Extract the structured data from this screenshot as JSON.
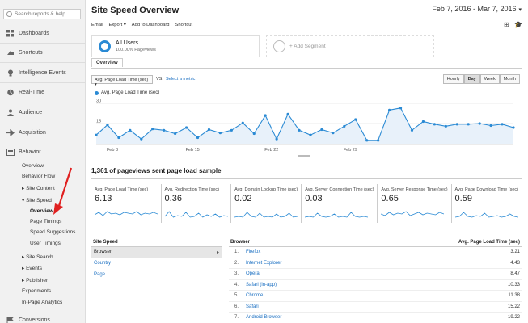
{
  "sidebar": {
    "search_placeholder": "Search reports & help",
    "items": [
      {
        "label": "Dashboards",
        "icon": "grid-icon"
      },
      {
        "label": "Shortcuts",
        "icon": "shortcut-icon"
      },
      {
        "label": "Intelligence Events",
        "icon": "lightbulb-icon"
      },
      {
        "label": "Real-Time",
        "icon": "clock-icon"
      },
      {
        "label": "Audience",
        "icon": "person-icon"
      },
      {
        "label": "Acquisition",
        "icon": "acquisition-icon"
      },
      {
        "label": "Behavior",
        "icon": "behavior-icon"
      },
      {
        "label": "Conversions",
        "icon": "flag-icon"
      }
    ],
    "behavior_sub": {
      "overview": "Overview",
      "behavior_flow": "Behavior Flow",
      "site_content": "▸ Site Content",
      "site_speed": "▾ Site Speed",
      "speed_overview": "Overview",
      "page_timings": "Page Timings",
      "speed_suggestions": "Speed Suggestions",
      "user_timings": "User Timings",
      "site_search": "▸ Site Search",
      "events": "▸ Events",
      "publisher": "▸ Publisher",
      "experiments": "Experiments",
      "in_page_analytics": "In-Page Analytics"
    }
  },
  "header": {
    "title": "Site Speed Overview",
    "date_range": "Feb 7, 2016 - Mar 7, 2016",
    "toolbar": {
      "email": "Email",
      "export": "Export ▾",
      "add_to_dashboard": "Add to Dashboard",
      "shortcut": "Shortcut"
    }
  },
  "segments": {
    "all_users_title": "All Users",
    "all_users_sub": "100.00% Pageviews",
    "add_segment": "+ Add Segment"
  },
  "tabs": {
    "overview": "Overview"
  },
  "controls": {
    "metric_select": "Avg. Page Load Time (sec)",
    "vs": "VS.",
    "select_metric": "Select a metric",
    "granularity": [
      "Hourly",
      "Day",
      "Week",
      "Month"
    ],
    "active_granularity": "Day"
  },
  "chart_data": {
    "type": "area",
    "series": [
      {
        "name": "Avg. Page Load Time (sec)",
        "values": [
          6.5,
          14,
          4.5,
          10,
          3.5,
          11,
          10,
          7.5,
          12,
          4.5,
          10.5,
          8,
          10,
          15.5,
          7.5,
          21,
          3.5,
          22,
          10,
          6.5,
          10.5,
          8,
          13,
          18,
          2.5,
          2.5,
          25,
          26.5,
          10,
          16.5,
          14.5,
          13,
          14.5,
          14.5,
          15,
          13.5,
          14.5,
          12
        ]
      }
    ],
    "x_labels": [
      "Feb 8",
      "Feb 15",
      "Feb 22",
      "Feb 29"
    ],
    "x_label_index": [
      1,
      8,
      15,
      22
    ],
    "y_ticks": [
      15,
      30
    ],
    "ylim": [
      0,
      30
    ],
    "color": "#2a8ad4"
  },
  "sample_title": "1,361 of pageviews sent page load sample",
  "metrics": [
    {
      "label": "Avg. Page Load Time (sec)",
      "value": "6.13"
    },
    {
      "label": "Avg. Redirection Time (sec)",
      "value": "0.36"
    },
    {
      "label": "Avg. Domain Lookup Time (sec)",
      "value": "0.02"
    },
    {
      "label": "Avg. Server Connection Time (sec)",
      "value": "0.03"
    },
    {
      "label": "Avg. Server Response Time (sec)",
      "value": "0.65"
    },
    {
      "label": "Avg. Page Download Time (sec)",
      "value": "0.59"
    }
  ],
  "dimension_panel": {
    "header": "Site Speed",
    "items": [
      "Browser",
      "Country",
      "Page"
    ],
    "selected": "Browser"
  },
  "table": {
    "col_dim": "Browser",
    "col_metric": "Avg. Page Load Time (sec)",
    "rows": [
      {
        "num": "1.",
        "name": "Firefox",
        "value": "3.21"
      },
      {
        "num": "2.",
        "name": "Internet Explorer",
        "value": "4.43"
      },
      {
        "num": "3.",
        "name": "Opera",
        "value": "8.47"
      },
      {
        "num": "4.",
        "name": "Safari (in-app)",
        "value": "10.33"
      },
      {
        "num": "5.",
        "name": "Chrome",
        "value": "11.38"
      },
      {
        "num": "6.",
        "name": "Safari",
        "value": "15.22"
      },
      {
        "num": "7.",
        "name": "Android Browser",
        "value": "19.22"
      }
    ]
  },
  "colors": {
    "accent": "#2a8ad4",
    "arrow": "#e02020",
    "link": "#1a6fc2"
  }
}
